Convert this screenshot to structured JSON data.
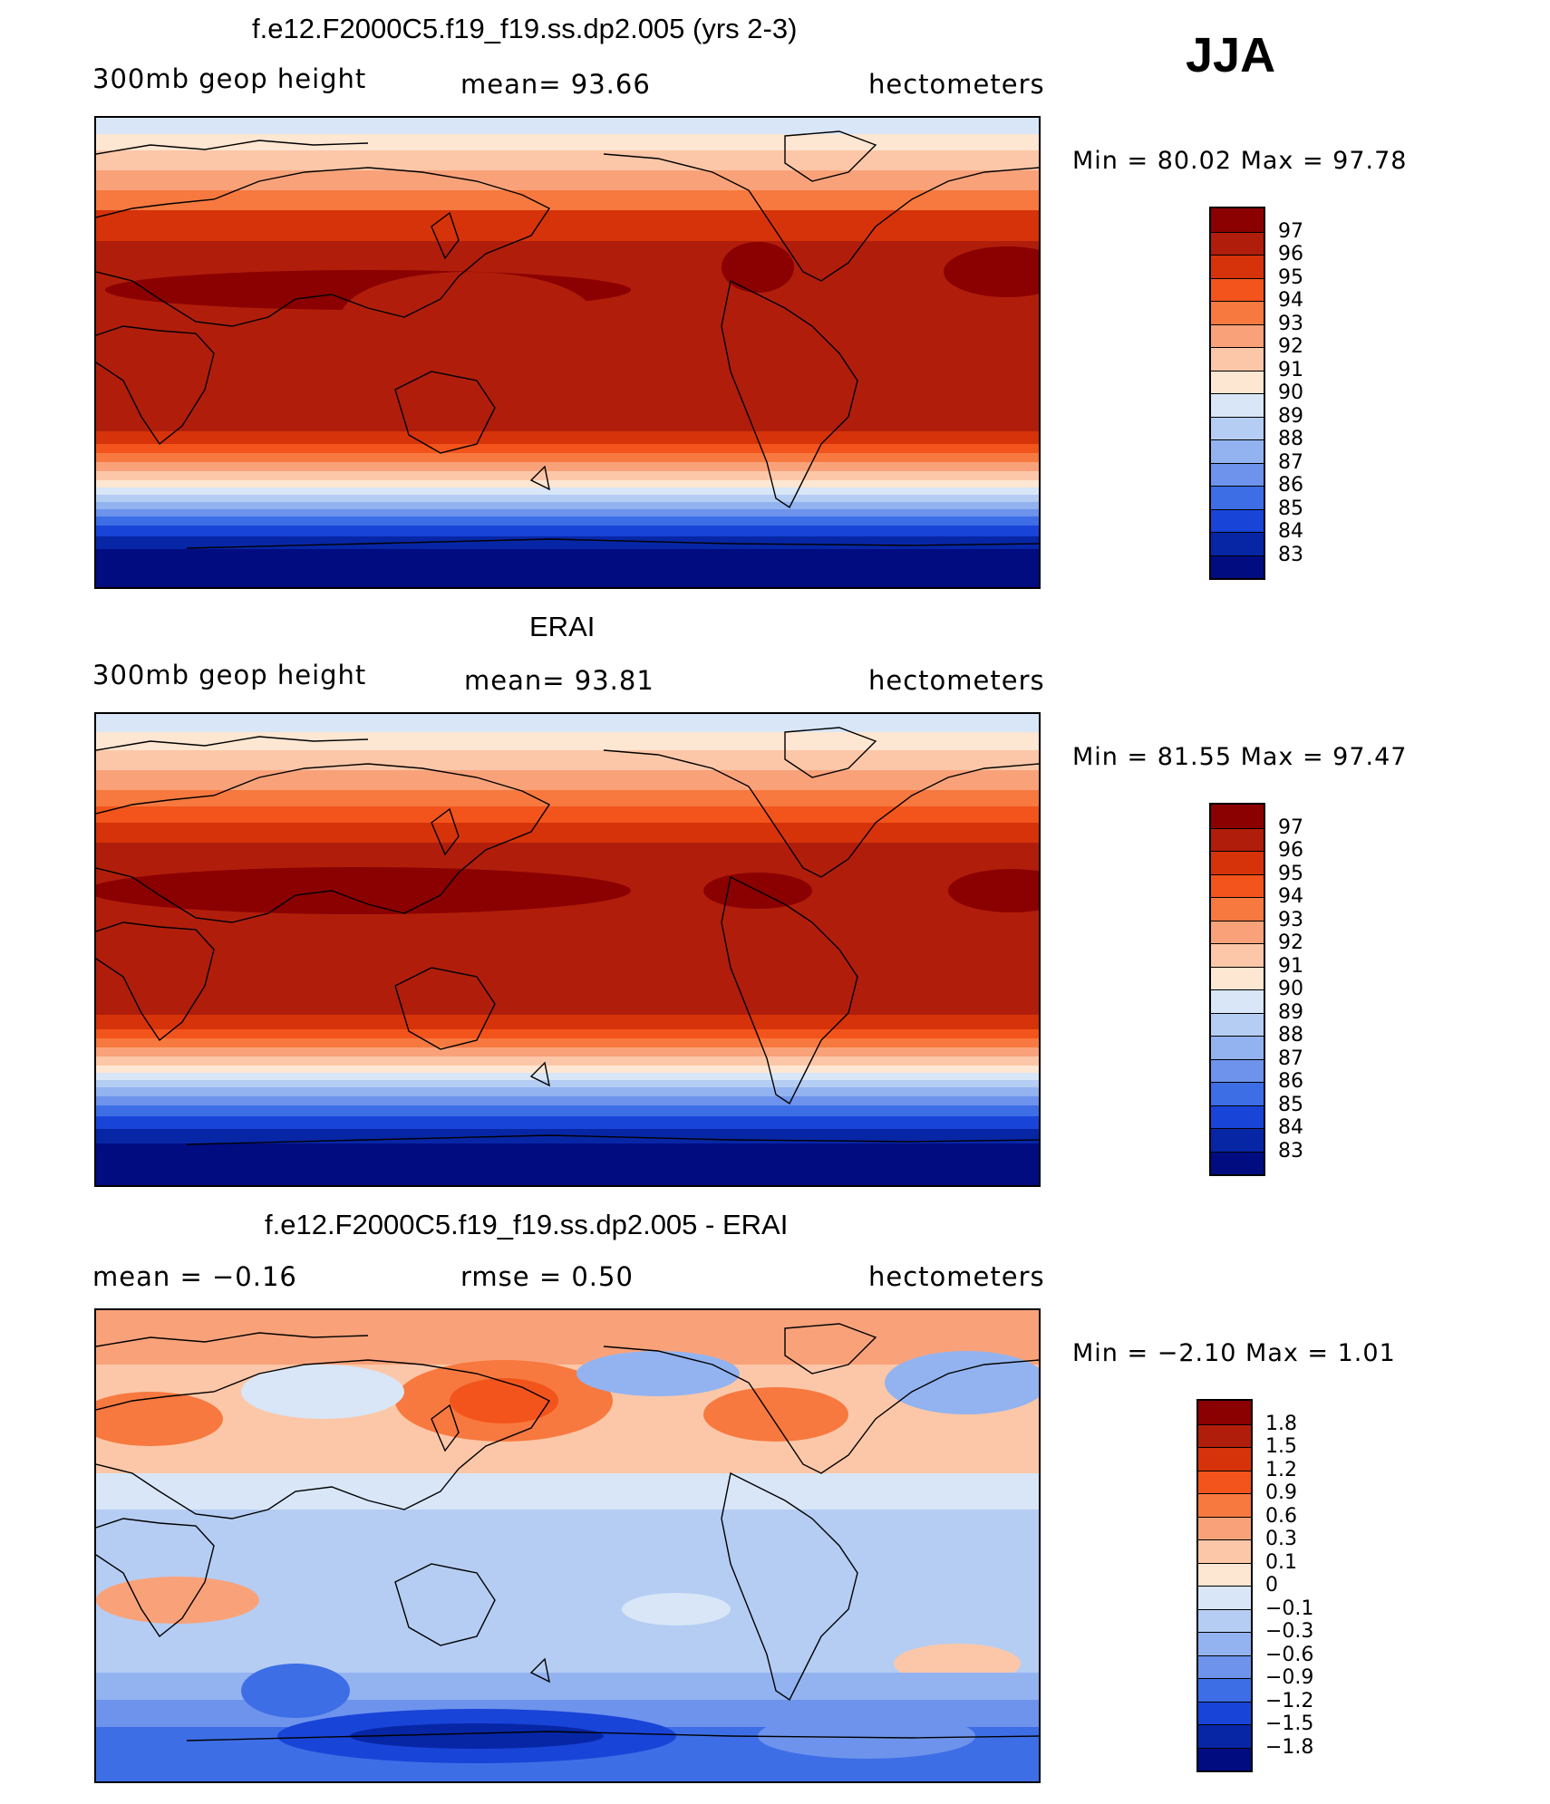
{
  "season": "JJA",
  "panels": [
    {
      "title": "f.e12.F2000C5.f19_f19.ss.dp2.005 (yrs 2-3)",
      "left_label": "300mb geop height",
      "center_label": "mean=   93.66",
      "right_label": "hectometers",
      "minmax": "Min =   80.02 Max =   97.78",
      "colorbar_labels": [
        "97",
        "96",
        "95",
        "94",
        "93",
        "92",
        "91",
        "90",
        "89",
        "88",
        "87",
        "86",
        "85",
        "84",
        "83"
      ]
    },
    {
      "title": "ERAI",
      "left_label": "300mb geop height",
      "center_label": "mean=   93.81",
      "right_label": "hectometers",
      "minmax": "Min =   81.55 Max =   97.47",
      "colorbar_labels": [
        "97",
        "96",
        "95",
        "94",
        "93",
        "92",
        "91",
        "90",
        "89",
        "88",
        "87",
        "86",
        "85",
        "84",
        "83"
      ]
    },
    {
      "title": "f.e12.F2000C5.f19_f19.ss.dp2.005 - ERAI",
      "left_label": "mean =   −0.16",
      "center_label": "rmse =    0.50",
      "right_label": "hectometers",
      "minmax": "Min =   −2.10 Max =    1.01",
      "colorbar_labels": [
        "1.8",
        "1.5",
        "1.2",
        "0.9",
        "0.6",
        "0.3",
        "0.1",
        "0",
        "−0.1",
        "−0.3",
        "−0.6",
        "−0.9",
        "−1.2",
        "−1.5",
        "−1.8"
      ]
    }
  ],
  "colors": {
    "abs_scale": [
      "#8b0000",
      "#b01e0b",
      "#d6330a",
      "#f2541c",
      "#f7793f",
      "#f9a27a",
      "#fcc7a8",
      "#fde6d2",
      "#d8e6f8",
      "#b5cdf3",
      "#93b3f0",
      "#6e93ec",
      "#3d6ee6",
      "#1944d8",
      "#0726a6",
      "#000c80"
    ],
    "diff_scale": [
      "#8b0000",
      "#b01e0b",
      "#d6330a",
      "#f2541c",
      "#f7793f",
      "#f9a27a",
      "#fcc7a8",
      "#fde6d2",
      "#d8e6f8",
      "#b5cdf3",
      "#93b3f0",
      "#6e93ec",
      "#3d6ee6",
      "#1944d8",
      "#0726a6",
      "#000c80"
    ]
  }
}
